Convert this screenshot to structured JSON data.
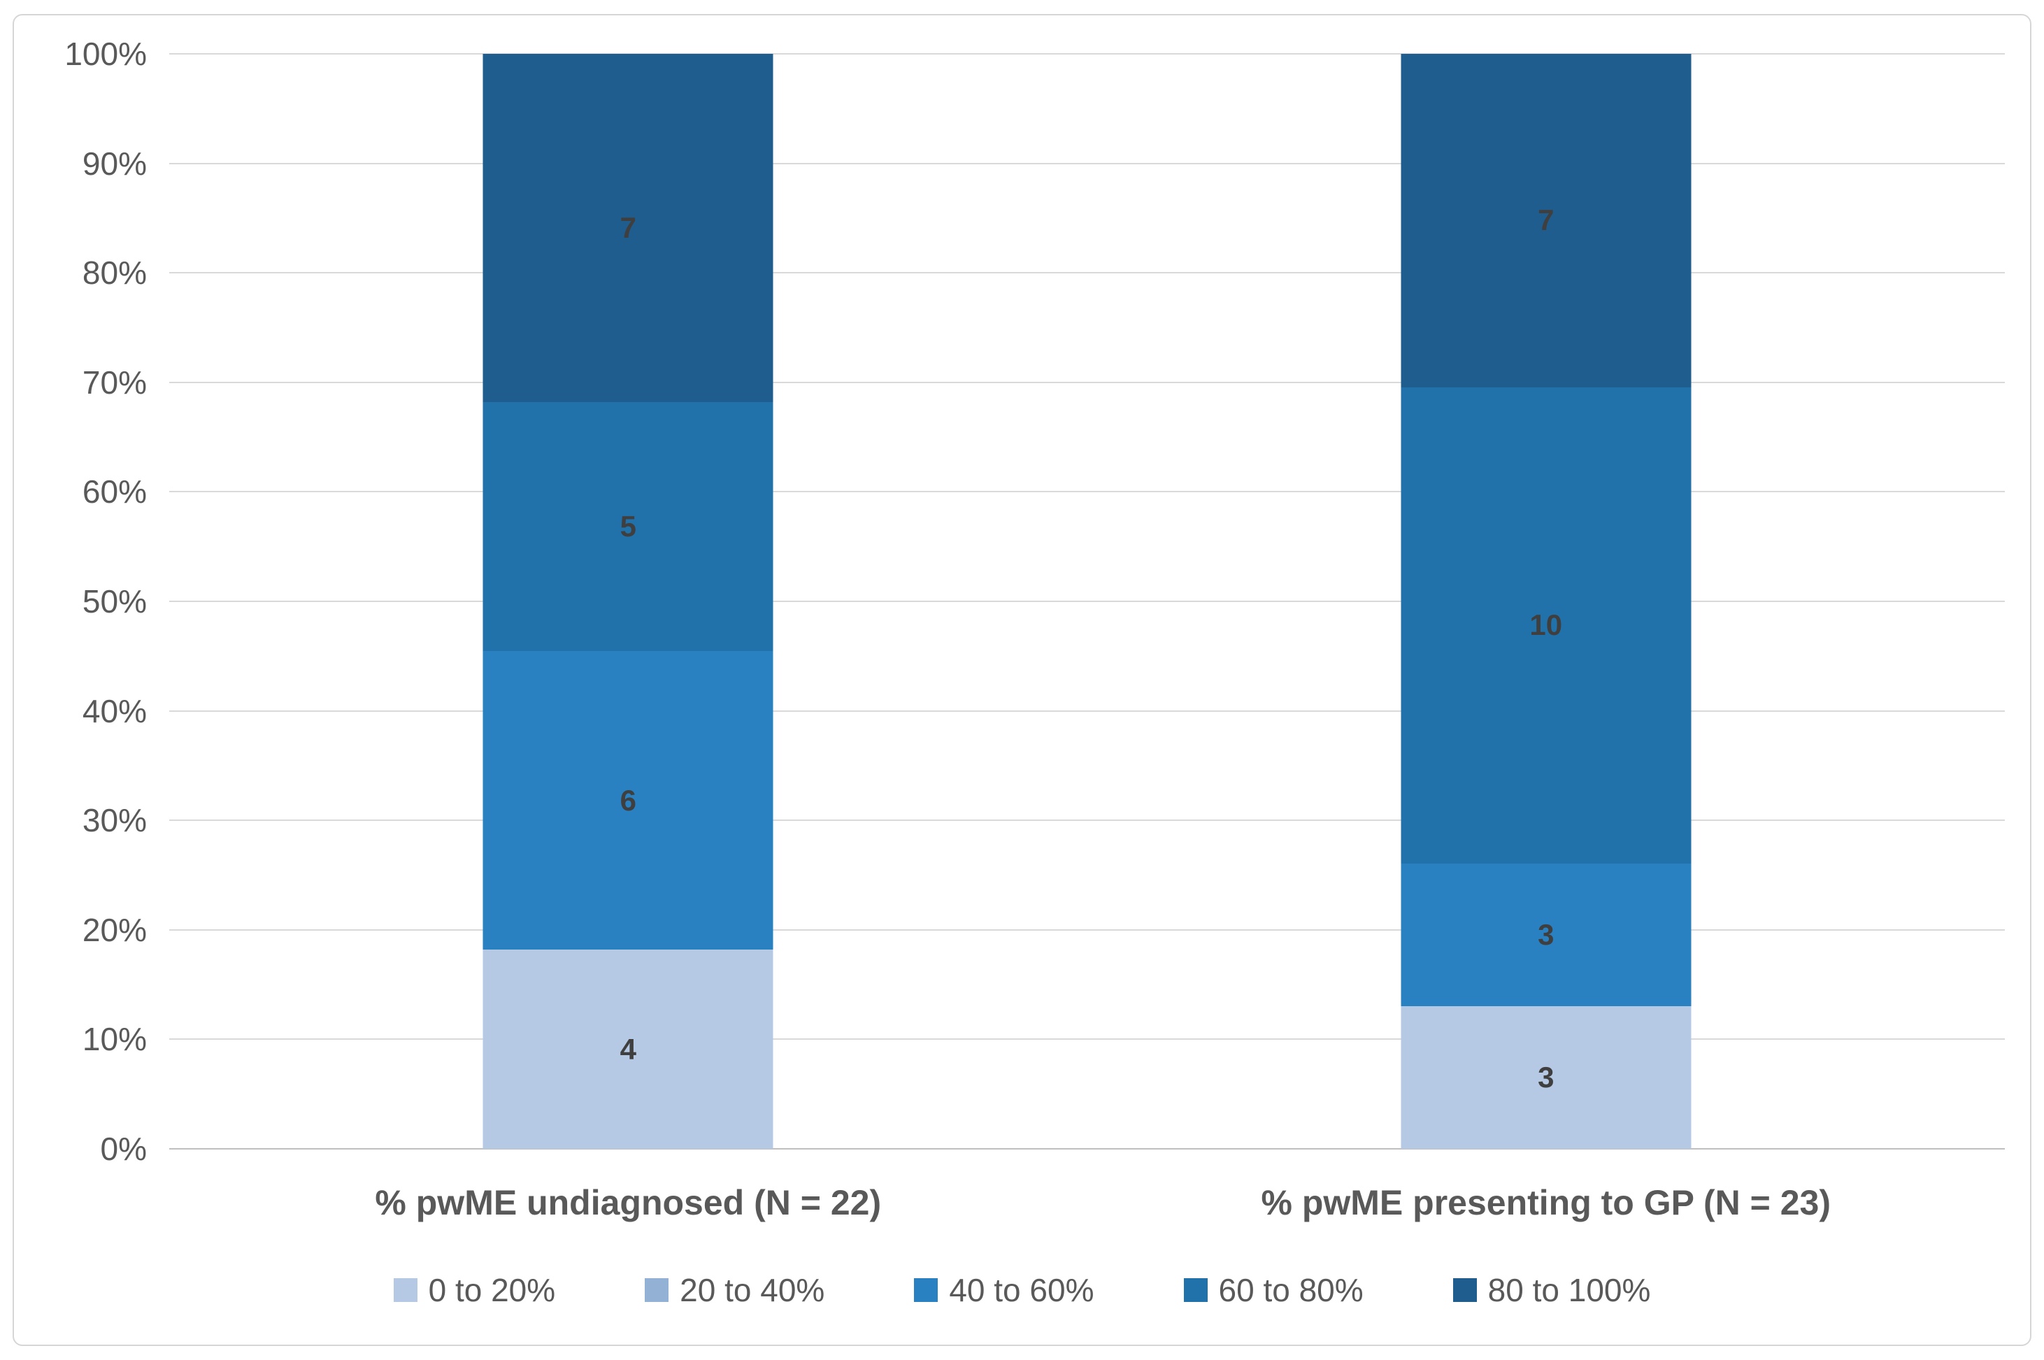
{
  "chart_data": {
    "type": "bar",
    "subtype": "stacked-100-percent",
    "title": "",
    "categories": [
      "% pwME undiagnosed (N = 22)",
      "% pwME presenting to GP (N = 23)"
    ],
    "category_totals": [
      22,
      23
    ],
    "series": [
      {
        "name": "0 to 20%",
        "color": "#b6c9e4",
        "values": [
          4,
          3
        ]
      },
      {
        "name": "20 to 40%",
        "color": "#92b1d5",
        "values": [
          0,
          0
        ]
      },
      {
        "name": "40 to 60%",
        "color": "#2981c2",
        "values": [
          6,
          3
        ]
      },
      {
        "name": "60 to 80%",
        "color": "#2172aa",
        "values": [
          5,
          10
        ]
      },
      {
        "name": "80 to 100%",
        "color": "#1f5d8e",
        "values": [
          7,
          7
        ]
      }
    ],
    "xlabel": "",
    "ylabel": "",
    "y_axis": {
      "min": 0,
      "max": 100,
      "tick_step": 10,
      "tick_labels": [
        "0%",
        "10%",
        "20%",
        "30%",
        "40%",
        "50%",
        "60%",
        "70%",
        "80%",
        "90%",
        "100%"
      ]
    },
    "grid": true,
    "legend_position": "bottom",
    "bar_centers_pct": [
      25,
      75
    ]
  },
  "styles": {
    "gridline_color": "#d9d9d9",
    "axis_line_color": "#bfbfbf",
    "tick_label_color": "#595959",
    "category_label_color": "#595959",
    "data_label_color": "#3f3f3f",
    "frame_border_color": "#d6d6d6",
    "background_color": "#ffffff"
  }
}
